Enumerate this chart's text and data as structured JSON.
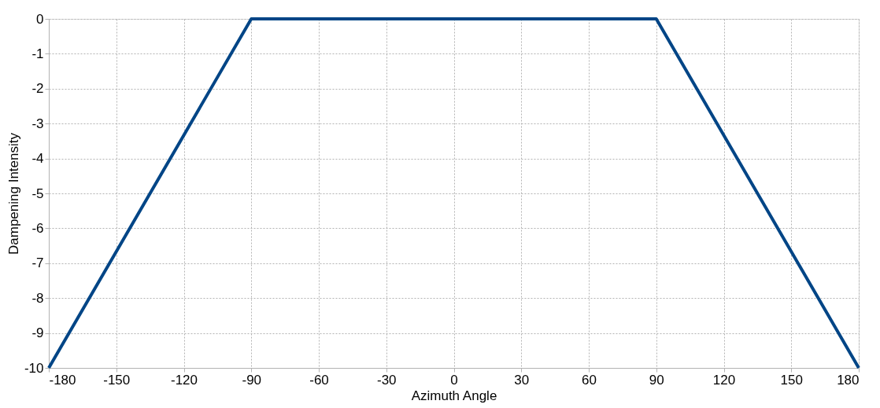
{
  "chart_data": {
    "type": "line",
    "xlabel": "Azimuth Angle",
    "ylabel": "Dampening Intensity",
    "x": [
      -180,
      -90,
      90,
      180
    ],
    "series": [
      {
        "color": "#004586",
        "values": [
          -10,
          0,
          0,
          -10
        ]
      }
    ],
    "xlim": [
      -180,
      180
    ],
    "xticks": [
      -180,
      -150,
      -120,
      -90,
      -60,
      -30,
      0,
      30,
      60,
      90,
      120,
      150,
      180
    ],
    "ylim": [
      -10,
      0
    ],
    "yticks": [
      -10,
      -9,
      -8,
      -7,
      -6,
      -5,
      -4,
      -3,
      -2,
      -1,
      0
    ],
    "grid": true,
    "marker": "none",
    "line_style": "solid"
  }
}
